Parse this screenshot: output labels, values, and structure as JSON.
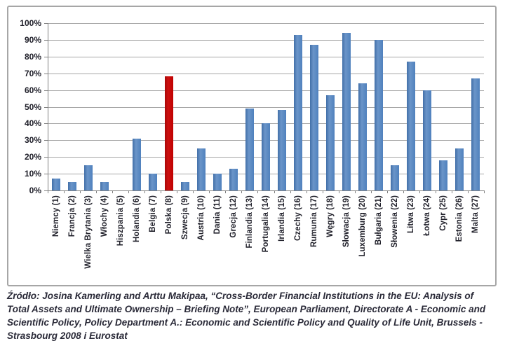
{
  "chart_data": {
    "type": "bar",
    "title": "",
    "xlabel": "",
    "ylabel": "",
    "categories": [
      "Niemcy (1)",
      "Francja (2)",
      "Wielka Brytania (3)",
      "Włochy (4)",
      "Hiszpania (5)",
      "Holandia (6)",
      "Belgia (7)",
      "Polska (8)",
      "Szwecja (9)",
      "Austria (10)",
      "Dania (11)",
      "Grecja (12)",
      "Finlandia (13)",
      "Portugalia (14)",
      "Irlandia (15)",
      "Czechy (16)",
      "Rumunia (17)",
      "Węgry (18)",
      "Słowacja (19)",
      "Luxemburg (20)",
      "Bułgaria (21)",
      "Słowenia (22)",
      "Litwa (23)",
      "Łotwa (24)",
      "Cypr (25)",
      "Estonia (26)",
      "Malta (27)"
    ],
    "values": [
      7,
      5,
      15,
      5,
      0,
      31,
      10,
      68,
      5,
      25,
      10,
      13,
      49,
      40,
      48,
      93,
      87,
      57,
      94,
      64,
      90,
      15,
      77,
      60,
      18,
      25,
      67
    ],
    "ylim": [
      0,
      100
    ],
    "ytick_step": 10,
    "ytick_labels": [
      "0%",
      "10%",
      "20%",
      "30%",
      "40%",
      "50%",
      "60%",
      "70%",
      "80%",
      "90%",
      "100%"
    ],
    "grid": true,
    "legend": "none",
    "bar_color": "#4f81bd",
    "highlight": {
      "index": 7,
      "category": "Polska (8)",
      "color": "#c00000"
    }
  },
  "source": {
    "text": "Źródło: Josina Kamerling and Arttu Makipaa, “Cross-Border Financial Institutions in the EU: Analysis of Total Assets and Ultimate Ownership – Briefing Note”, European Parliament, Directorate A - Economic and Scientific Policy, Policy Department A.: Economic and Scientific Policy and Quality of Life Unit, Brussels - Strasbourg 2008 i Eurostat"
  }
}
